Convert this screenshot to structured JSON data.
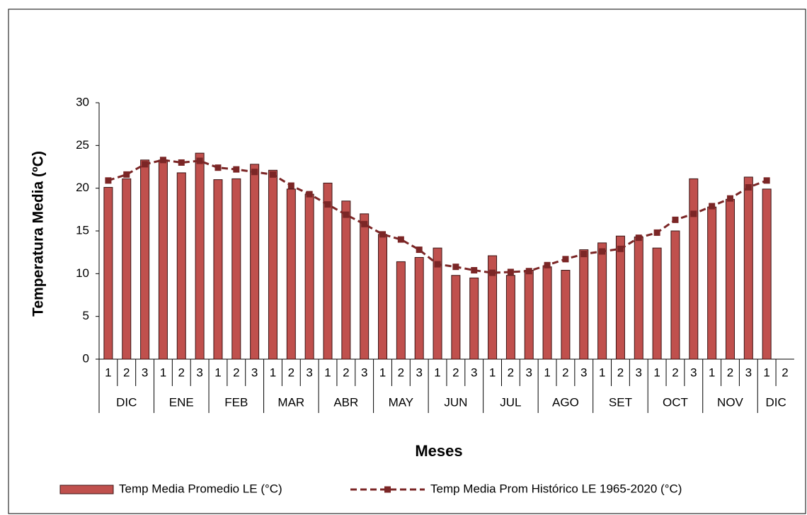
{
  "chart_data": {
    "type": "bar_line",
    "x_label": "Meses",
    "y_label": "Temperatura Media (ºC)",
    "groups": [
      {
        "label": "DIC",
        "categories": [
          "1",
          "2",
          "3"
        ]
      },
      {
        "label": "ENE",
        "categories": [
          "1",
          "2",
          "3"
        ]
      },
      {
        "label": "FEB",
        "categories": [
          "1",
          "2",
          "3"
        ]
      },
      {
        "label": "MAR",
        "categories": [
          "1",
          "2",
          "3"
        ]
      },
      {
        "label": "ABR",
        "categories": [
          "1",
          "2",
          "3"
        ]
      },
      {
        "label": "MAY",
        "categories": [
          "1",
          "2",
          "3"
        ]
      },
      {
        "label": "JUN",
        "categories": [
          "1",
          "2",
          "3"
        ]
      },
      {
        "label": "JUL",
        "categories": [
          "1",
          "2",
          "3"
        ]
      },
      {
        "label": "AGO",
        "categories": [
          "1",
          "2",
          "3"
        ]
      },
      {
        "label": "SET",
        "categories": [
          "1",
          "2",
          "3"
        ]
      },
      {
        "label": "OCT",
        "categories": [
          "1",
          "2",
          "3"
        ]
      },
      {
        "label": "NOV",
        "categories": [
          "1",
          "2",
          "3"
        ]
      },
      {
        "label": "DIC",
        "categories": [
          "1",
          "2"
        ]
      }
    ],
    "series": [
      {
        "name": "Temp Media Promedio LE (°C)",
        "type": "bar",
        "color": "#c0504d",
        "edge": "#3a1414",
        "values": [
          20.1,
          21.1,
          23.3,
          23.3,
          21.8,
          24.1,
          21.0,
          21.1,
          22.8,
          22.1,
          19.9,
          19.3,
          20.6,
          18.5,
          17.0,
          14.6,
          11.4,
          11.9,
          13.0,
          9.8,
          9.5,
          12.1,
          9.8,
          10.4,
          10.8,
          10.4,
          12.8,
          13.6,
          14.4,
          14.3,
          13.0,
          15.0,
          21.1,
          17.8,
          18.7,
          21.3,
          19.9,
          null
        ]
      },
      {
        "name": "Temp Media Prom Histórico LE 1965-2020 (°C)",
        "type": "line",
        "color": "#7b2626",
        "dashed": true,
        "values": [
          20.9,
          21.6,
          22.8,
          23.3,
          23.0,
          23.2,
          22.4,
          22.2,
          21.9,
          21.6,
          20.3,
          19.3,
          18.1,
          16.9,
          15.8,
          14.6,
          14.0,
          12.8,
          11.1,
          10.8,
          10.4,
          10.1,
          10.2,
          10.3,
          11.0,
          11.7,
          12.3,
          12.6,
          12.9,
          14.2,
          14.8,
          16.3,
          17.0,
          17.9,
          18.8,
          20.1,
          20.9,
          null
        ]
      }
    ],
    "ylim": [
      0,
      30
    ],
    "yticks": [
      0,
      5,
      10,
      15,
      20,
      25,
      30
    ],
    "grid": false,
    "legend": "bottom"
  }
}
